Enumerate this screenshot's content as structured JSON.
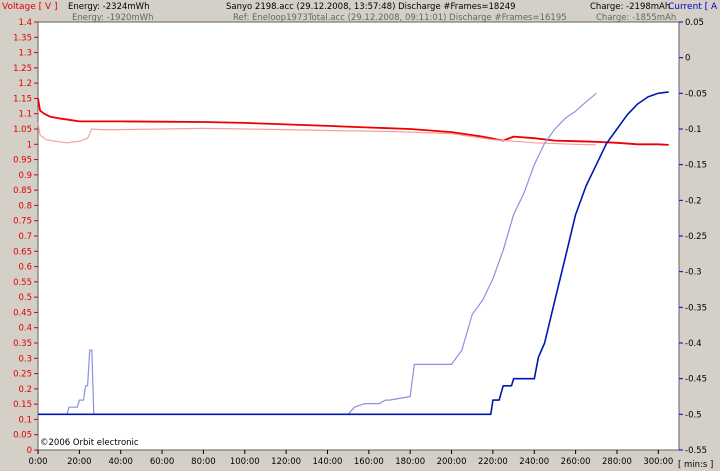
{
  "header": {
    "left_title": "Voltage [ V ]",
    "right_title": "Current [ A ]",
    "energy_1": "Energy: -2324mWh",
    "energy_2": "Energy: -1920mWh",
    "file_line": "Sanyo 2198.acc (29.12.2008, 13:57:48)   Discharge  #Frames=18249",
    "ref_line": "Ref: Eneloop1973Total.acc (29.12.2008, 09:11:01)  Discharge  #Frames=16195",
    "charge_1": "Charge: -2198mAh",
    "charge_2": "Charge: -1855mAh"
  },
  "x_unit_label": "[ min:s ]",
  "copyright": "©2006 Orbit electronic",
  "colors": {
    "voltage_axis": "#e00000",
    "current_axis": "#0000cc",
    "voltage_main": "#ee0000",
    "voltage_ref": "#f4a0a0",
    "current_main": "#0018b0",
    "current_ref": "#8c90e0"
  },
  "chart_data": {
    "type": "line",
    "x_unit": "minutes",
    "xlim": [
      0,
      310
    ],
    "x_ticks": [
      "0:00",
      "20:00",
      "40:00",
      "60:00",
      "80:00",
      "100:00",
      "120:00",
      "140:00",
      "160:00",
      "180:00",
      "200:00",
      "220:00",
      "240:00",
      "260:00",
      "280:00",
      "300:00"
    ],
    "y_left": {
      "label": "Voltage [ V ]",
      "lim": [
        0,
        1.4
      ],
      "ticks": [
        "0",
        "0.05",
        "0.1",
        "0.15",
        "0.2",
        "0.25",
        "0.3",
        "0.35",
        "0.4",
        "0.45",
        "0.5",
        "0.55",
        "0.6",
        "0.65",
        "0.7",
        "0.75",
        "0.8",
        "0.85",
        "0.9",
        "0.95",
        "1",
        "1.05",
        "1.1",
        "1.15",
        "1.2",
        "1.25",
        "1.3",
        "1.35",
        "1.4"
      ]
    },
    "y_right": {
      "label": "Current [ A ]",
      "lim": [
        -0.55,
        0.05
      ],
      "ticks": [
        "0.05",
        "0",
        "-0.05",
        "-0.1",
        "-0.15",
        "-0.2",
        "-0.25",
        "-0.3",
        "-0.35",
        "-0.4",
        "-0.45",
        "-0.5",
        "-0.55"
      ]
    },
    "grid": false,
    "series": [
      {
        "axis": "left",
        "color_key": "voltage_main",
        "x": [
          0,
          1,
          3,
          6,
          10,
          15,
          20,
          25,
          40,
          60,
          80,
          100,
          120,
          140,
          160,
          180,
          200,
          215,
          225,
          230,
          240,
          250,
          260,
          270,
          280,
          290,
          300,
          305
        ],
        "y": [
          1.15,
          1.11,
          1.1,
          1.09,
          1.085,
          1.08,
          1.075,
          1.075,
          1.075,
          1.074,
          1.073,
          1.07,
          1.065,
          1.06,
          1.055,
          1.05,
          1.04,
          1.025,
          1.012,
          1.025,
          1.02,
          1.012,
          1.01,
          1.008,
          1.005,
          1.0,
          1.0,
          0.998
        ]
      },
      {
        "axis": "left",
        "color_key": "voltage_ref",
        "x": [
          0,
          1,
          4,
          8,
          14,
          20,
          24,
          26,
          30,
          40,
          60,
          80,
          100,
          120,
          140,
          160,
          180,
          200,
          220,
          240,
          260,
          270
        ],
        "y": [
          1.07,
          1.03,
          1.015,
          1.01,
          1.005,
          1.01,
          1.02,
          1.05,
          1.048,
          1.048,
          1.05,
          1.052,
          1.05,
          1.048,
          1.045,
          1.043,
          1.04,
          1.035,
          1.015,
          1.005,
          1.0,
          0.998
        ]
      },
      {
        "axis": "right",
        "color_key": "current_ref",
        "x": [
          0,
          14,
          15,
          19,
          20,
          22,
          23,
          24,
          25,
          26,
          27,
          150,
          153,
          158,
          165,
          168,
          170,
          180,
          182,
          200,
          205,
          210,
          215,
          220,
          225,
          230,
          235,
          240,
          245,
          250,
          255,
          260,
          265,
          270
        ],
        "y": [
          -0.5,
          -0.5,
          -0.49,
          -0.49,
          -0.48,
          -0.48,
          -0.46,
          -0.46,
          -0.41,
          -0.41,
          -0.5,
          -0.5,
          -0.49,
          -0.485,
          -0.485,
          -0.48,
          -0.48,
          -0.475,
          -0.43,
          -0.43,
          -0.41,
          -0.36,
          -0.34,
          -0.31,
          -0.27,
          -0.22,
          -0.19,
          -0.15,
          -0.12,
          -0.1,
          -0.085,
          -0.075,
          -0.062,
          -0.05
        ]
      },
      {
        "axis": "right",
        "color_key": "current_main",
        "x": [
          0,
          219,
          220,
          223,
          225,
          229,
          230,
          240,
          242,
          245,
          250,
          255,
          260,
          265,
          270,
          275,
          280,
          285,
          290,
          295,
          300,
          305
        ],
        "y": [
          -0.5,
          -0.5,
          -0.48,
          -0.48,
          -0.46,
          -0.46,
          -0.45,
          -0.45,
          -0.42,
          -0.4,
          -0.34,
          -0.28,
          -0.22,
          -0.18,
          -0.15,
          -0.12,
          -0.1,
          -0.08,
          -0.065,
          -0.055,
          -0.05,
          -0.048
        ]
      }
    ]
  }
}
